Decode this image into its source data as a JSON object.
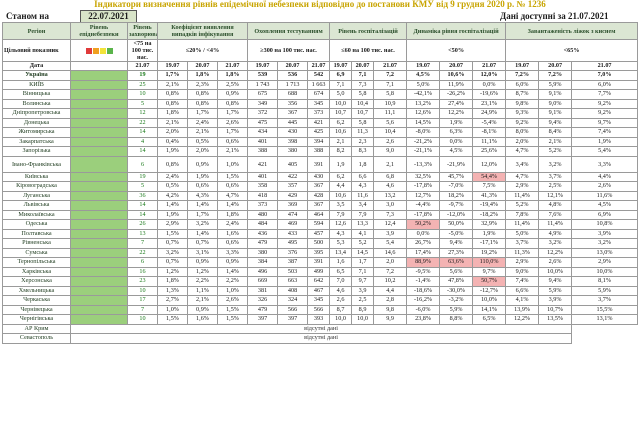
{
  "title": "Індикатори визначення рівнів епідемічної небезпеки відповідно до постанови КМУ від 9 грудня 2020 р. № 1236",
  "stan_label": "Станом на",
  "stan_date": "22.07.2021",
  "available": "Дані доступні за 21.07.2021",
  "colors": {
    "level_green": "#9bcf7c",
    "header_bg": "#dbe6d3",
    "swatches": [
      "#e03a3a",
      "#f0a020",
      "#f2e33a",
      "#5ab44a"
    ]
  },
  "headers": {
    "region": "Регіон",
    "level": "Рівень епіднебезпеки",
    "incidence": "Рівень захворюваності",
    "detection": "Коефіцієнт виявлення випадків інфікування",
    "testing": "Охоплення тестуванням",
    "hosp": "Рівень госпіталізацій",
    "dynamics": "Динаміка рівня госпіталізацій",
    "oxygen": "Завантаженість ліжок з киснем"
  },
  "targets": {
    "label": "Цільовий показник",
    "incidence": "<75 на 100 тис. нас.",
    "detection": "≤20% / <4%",
    "testing": "≥300 на 100 тис. нас.",
    "hosp": "≤60 на 100 тис. нас.",
    "dynamics": "<50%",
    "oxygen": "<65%"
  },
  "date_label": "Дата",
  "dates": [
    "21.07",
    "19.07",
    "20.07",
    "21.07",
    "19.07",
    "20.07",
    "21.07",
    "19.07",
    "20.07",
    "21.07",
    "19.07",
    "20.07",
    "21.07",
    "19.07",
    "20.07",
    "21.07"
  ],
  "rows": [
    {
      "name": "Україна",
      "cells": [
        "19",
        "1,7%",
        "1,8%",
        "1,8%",
        "539",
        "536",
        "542",
        "6,9",
        "7,1",
        "7,2",
        "4,5%",
        "10,6%",
        "12,0%",
        "7,2%",
        "7,2%",
        "7,0%"
      ]
    },
    {
      "name": "КИЇВ",
      "cells": [
        "25",
        "2,1%",
        "2,3%",
        "2,5%",
        "1 743",
        "1 713",
        "1 663",
        "7,1",
        "7,3",
        "7,1",
        "5,0%",
        "11,9%",
        "0,0%",
        "6,0%",
        "5,9%",
        "6,0%"
      ]
    },
    {
      "name": "Вінницька",
      "cells": [
        "10",
        "0,8%",
        "0,8%",
        "0,9%",
        "675",
        "688",
        "674",
        "5,0",
        "5,8",
        "5,8",
        "-42,1%",
        "-26,2%",
        "-19,6%",
        "8,7%",
        "9,1%",
        "7,7%"
      ]
    },
    {
      "name": "Волинська",
      "cells": [
        "5",
        "0,8%",
        "0,8%",
        "0,8%",
        "349",
        "356",
        "345",
        "10,0",
        "10,4",
        "10,9",
        "13,2%",
        "27,4%",
        "23,1%",
        "9,8%",
        "9,0%",
        "9,2%"
      ]
    },
    {
      "name": "Дніпропетровська",
      "cells": [
        "12",
        "1,8%",
        "1,7%",
        "1,7%",
        "372",
        "367",
        "373",
        "10,7",
        "10,7",
        "11,1",
        "12,6%",
        "12,2%",
        "24,9%",
        "9,3%",
        "9,1%",
        "9,2%"
      ]
    },
    {
      "name": "Донецька",
      "cells": [
        "22",
        "2,1%",
        "2,4%",
        "2,6%",
        "475",
        "445",
        "421",
        "6,2",
        "5,8",
        "5,6",
        "14,5%",
        "1,9%",
        "-5,4%",
        "9,2%",
        "9,4%",
        "9,7%"
      ]
    },
    {
      "name": "Житомирська",
      "cells": [
        "14",
        "2,0%",
        "2,1%",
        "1,7%",
        "434",
        "430",
        "425",
        "10,6",
        "11,3",
        "10,4",
        "-8,0%",
        "6,3%",
        "-8,1%",
        "8,0%",
        "8,4%",
        "7,4%"
      ]
    },
    {
      "name": "Закарпатська",
      "cells": [
        "4",
        "0,4%",
        "0,5%",
        "0,6%",
        "401",
        "398",
        "394",
        "2,1",
        "2,3",
        "2,6",
        "-21,2%",
        "0,0%",
        "11,1%",
        "2,0%",
        "2,1%",
        "1,9%"
      ]
    },
    {
      "name": "Запорізька",
      "cells": [
        "14",
        "1,9%",
        "2,0%",
        "2,1%",
        "388",
        "380",
        "388",
        "8,2",
        "8,3",
        "9,0",
        "-21,1%",
        "4,5%",
        "25,6%",
        "4,7%",
        "5,2%",
        "5,4%"
      ]
    },
    {
      "name": "Івано-Франківська",
      "tall": true,
      "cells": [
        "6",
        "0,8%",
        "0,9%",
        "1,0%",
        "421",
        "405",
        "391",
        "1,9",
        "1,8",
        "2,1",
        "-13,3%",
        "-21,9%",
        "12,0%",
        "3,4%",
        "3,2%",
        "3,3%"
      ]
    },
    {
      "name": "Київська",
      "cells": [
        "19",
        "2,4%",
        "1,9%",
        "1,5%",
        "401",
        "422",
        "430",
        "6,2",
        "6,6",
        "6,8",
        "32,5%",
        "45,7%",
        "54,4%",
        "4,7%",
        "3,7%",
        "4,4%"
      ],
      "pink": [
        12
      ]
    },
    {
      "name": "Кіровоградська",
      "cells": [
        "5",
        "0,5%",
        "0,6%",
        "0,6%",
        "358",
        "357",
        "367",
        "4,4",
        "4,3",
        "4,6",
        "-17,8%",
        "-7,0%",
        "7,5%",
        "2,9%",
        "2,5%",
        "2,6%"
      ]
    },
    {
      "name": "Луганська",
      "cells": [
        "36",
        "4,2%",
        "4,3%",
        "4,7%",
        "418",
        "429",
        "428",
        "10,6",
        "11,6",
        "13,2",
        "12,7%",
        "18,2%",
        "41,3%",
        "11,4%",
        "12,1%",
        "11,6%"
      ]
    },
    {
      "name": "Львівська",
      "cells": [
        "14",
        "1,4%",
        "1,4%",
        "1,4%",
        "373",
        "369",
        "367",
        "3,5",
        "3,4",
        "3,0",
        "-4,4%",
        "-9,7%",
        "-19,4%",
        "5,2%",
        "4,8%",
        "4,5%"
      ]
    },
    {
      "name": "Миколаївська",
      "cells": [
        "14",
        "1,9%",
        "1,7%",
        "1,8%",
        "480",
        "474",
        "464",
        "7,9",
        "7,9",
        "7,3",
        "-17,8%",
        "-12,0%",
        "-18,2%",
        "7,8%",
        "7,6%",
        "6,9%"
      ]
    },
    {
      "name": "Одеська",
      "cells": [
        "26",
        "2,9%",
        "3,2%",
        "2,4%",
        "484",
        "469",
        "594",
        "12,6",
        "13,3",
        "12,4",
        "50,2%",
        "50,0%",
        "32,9%",
        "11,4%",
        "11,4%",
        "10,8%"
      ],
      "pink": [
        10
      ]
    },
    {
      "name": "Полтавська",
      "cells": [
        "13",
        "1,5%",
        "1,4%",
        "1,6%",
        "436",
        "433",
        "457",
        "4,3",
        "4,1",
        "3,9",
        "0,0%",
        "-5,0%",
        "1,9%",
        "5,0%",
        "4,9%",
        "3,9%"
      ]
    },
    {
      "name": "Рівненська",
      "cells": [
        "7",
        "0,7%",
        "0,7%",
        "0,6%",
        "479",
        "495",
        "500",
        "5,3",
        "5,2",
        "5,4",
        "26,7%",
        "9,4%",
        "-17,1%",
        "3,7%",
        "3,2%",
        "3,2%"
      ]
    },
    {
      "name": "Сумська",
      "cells": [
        "22",
        "3,2%",
        "3,1%",
        "3,3%",
        "380",
        "376",
        "395",
        "13,4",
        "14,5",
        "14,6",
        "17,4%",
        "27,3%",
        "19,2%",
        "11,3%",
        "12,2%",
        "13,0%"
      ]
    },
    {
      "name": "Тернопільська",
      "cells": [
        "6",
        "0,7%",
        "0,9%",
        "0,9%",
        "384",
        "387",
        "391",
        "1,6",
        "1,7",
        "2,0",
        "88,9%",
        "63,6%",
        "110,0%",
        "2,9%",
        "2,6%",
        "2,9%"
      ],
      "pink": [
        10,
        11,
        12
      ]
    },
    {
      "name": "Харківська",
      "cells": [
        "16",
        "1,2%",
        "1,2%",
        "1,4%",
        "496",
        "503",
        "499",
        "6,5",
        "7,1",
        "7,2",
        "-9,5%",
        "5,6%",
        "9,7%",
        "9,0%",
        "10,0%",
        "10,0%"
      ]
    },
    {
      "name": "Херсонська",
      "cells": [
        "23",
        "1,8%",
        "2,2%",
        "2,2%",
        "669",
        "663",
        "642",
        "7,0",
        "9,7",
        "10,2",
        "-1,4%",
        "47,8%",
        "50,7%",
        "7,4%",
        "9,4%",
        "8,1%"
      ],
      "pink": [
        12
      ]
    },
    {
      "name": "Хмельницька",
      "cells": [
        "10",
        "1,3%",
        "1,1%",
        "1,0%",
        "381",
        "408",
        "467",
        "4,6",
        "3,9",
        "4,4",
        "-18,6%",
        "-30,0%",
        "-12,7%",
        "6,6%",
        "5,9%",
        "5,9%"
      ]
    },
    {
      "name": "Черкаська",
      "cells": [
        "17",
        "2,7%",
        "2,1%",
        "2,6%",
        "326",
        "324",
        "345",
        "2,6",
        "2,5",
        "2,8",
        "-16,2%",
        "-3,2%",
        "10,0%",
        "4,1%",
        "3,9%",
        "3,7%"
      ]
    },
    {
      "name": "Чернівецька",
      "cells": [
        "7",
        "1,0%",
        "0,9%",
        "1,5%",
        "479",
        "566",
        "566",
        "8,7",
        "8,9",
        "9,8",
        "-6,0%",
        "5,9%",
        "14,1%",
        "13,9%",
        "10,7%",
        "15,5%"
      ]
    },
    {
      "name": "Чернігівська",
      "cells": [
        "10",
        "1,5%",
        "1,6%",
        "1,5%",
        "397",
        "397",
        "393",
        "10,0",
        "10,0",
        "9,9",
        "23,8%",
        "8,8%",
        "6,5%",
        "12,2%",
        "13,5%",
        "13,1%"
      ]
    }
  ],
  "missing_rows": [
    {
      "name": "АР Крим",
      "note": "відсутні дані"
    },
    {
      "name": "Севастополь",
      "note": "відсутні дані"
    }
  ]
}
